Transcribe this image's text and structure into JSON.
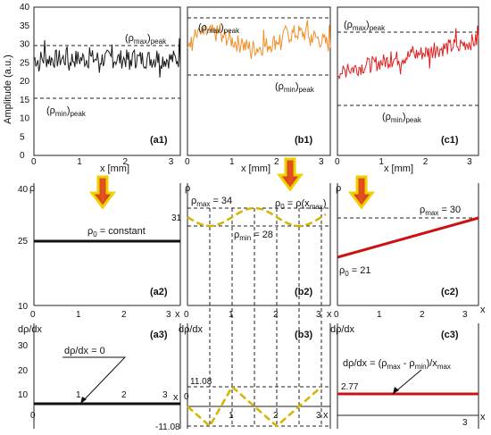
{
  "top_ylabel": "Amplitude (a.u.)",
  "top_xlabel": "x [mm]",
  "top_y_ticks": [
    "0",
    "5",
    "10",
    "15",
    "20",
    "25",
    "30",
    "35",
    "40"
  ],
  "top_x_ticks": [
    "0",
    "1",
    "2",
    "3"
  ],
  "panels_top": [
    {
      "id": "a1",
      "label": "(a1)",
      "color": "#1a1a1a",
      "max_label": "(ρmax)peak",
      "min_label": "(ρmin)peak",
      "max": 32,
      "min": 21,
      "trend": "constant"
    },
    {
      "id": "b1",
      "label": "(b1)",
      "color": "#f0902c",
      "max_label": "(ρmax)peak",
      "min_label": "(ρmin)peak",
      "max": 38,
      "min": 26,
      "trend": "sinusoidal"
    },
    {
      "id": "c1",
      "label": "(c1)",
      "color": "#e02020",
      "max_label": "(ρmax)peak",
      "min_label": "(ρmin)peak",
      "max": 35,
      "min": 19.5,
      "trend": "linear"
    }
  ],
  "mid": {
    "ylabel": "ρ",
    "xlabel": "x",
    "a2": {
      "label": "(a2)",
      "annotation": "ρ0 = constant",
      "y_ticks": [
        "10",
        "25",
        "40"
      ],
      "x_ticks": [
        "0",
        "1",
        "2",
        "3"
      ]
    },
    "b2": {
      "label": "(b2)",
      "max_annotation": "ρmax = 34",
      "func_annotation": "ρ0 = ρ(xmax)",
      "min_annotation": "ρmin = 28",
      "left_value": "31",
      "x_ticks": [
        "0",
        "1",
        "2",
        "3"
      ]
    },
    "c2": {
      "label": "(c2)",
      "max_annotation": "ρmax = 30",
      "start_annotation": "ρ0 = 21",
      "x_ticks": [
        "0",
        "1",
        "2",
        "3"
      ]
    }
  },
  "bottom": {
    "ylabel": "dρ/dx",
    "xlabel": "x",
    "a3": {
      "label": "(a3)",
      "annotation": "dρ/dx = 0",
      "y_ticks": [
        "10",
        "20",
        "30"
      ],
      "x_ticks": [
        "0",
        "1",
        "2",
        "3"
      ]
    },
    "b3": {
      "label": "(b3)",
      "top_value": "11.08",
      "bottom_value": "-11.08",
      "x_ticks": [
        "0",
        "1",
        "2",
        "3"
      ]
    },
    "c3": {
      "label": "(c3)",
      "annotation": "dρ/dx = (ρmax - ρmin)/xmax",
      "value": "2.77",
      "x_ticks": [
        "0",
        "1",
        "2",
        "3"
      ]
    }
  },
  "chart_data": [
    {
      "type": "line",
      "title": "",
      "xlabel": "x [mm]",
      "ylabel": "Amplitude (a.u.)",
      "xlim": [
        0,
        3.2
      ],
      "ylim": [
        0,
        40
      ],
      "series": [
        {
          "name": "",
          "values_summary": "noisy signal around 26",
          "max": 32,
          "min": 21
        }
      ]
    },
    {
      "type": "line",
      "title": "",
      "xlabel": "x [mm]",
      "ylabel": "",
      "xlim": [
        0,
        3.2
      ],
      "ylim": [
        0,
        40
      ],
      "series": [
        {
          "name": "",
          "values_summary": "noisy sinusoidal signal around 31",
          "max": 38,
          "min": 26
        }
      ]
    },
    {
      "type": "line",
      "title": "",
      "xlabel": "x [mm]",
      "ylabel": "",
      "xlim": [
        0,
        3.2
      ],
      "ylim": [
        0,
        40
      ],
      "series": [
        {
          "name": "",
          "values_summary": "noisy linearly rising signal",
          "max": 35,
          "min": 19.5
        }
      ]
    },
    {
      "type": "line",
      "id": "a2",
      "x": [
        0,
        3.2
      ],
      "y": [
        25,
        25
      ]
    },
    {
      "type": "line",
      "id": "b2",
      "x": [
        0,
        0.5,
        1,
        1.5,
        2,
        2.5,
        3
      ],
      "y": [
        31,
        28,
        31,
        34,
        31,
        28,
        31
      ]
    },
    {
      "type": "line",
      "id": "c2",
      "x": [
        0,
        3.25
      ],
      "y": [
        21,
        30
      ]
    },
    {
      "type": "line",
      "id": "a3",
      "x": [
        0,
        3.2
      ],
      "y": [
        0,
        0
      ]
    },
    {
      "type": "line",
      "id": "b3",
      "x": [
        0,
        0.5,
        1,
        1.5,
        2,
        2.5,
        3
      ],
      "y": [
        0,
        -11.08,
        11.08,
        0,
        -11.08,
        0,
        11.08
      ]
    },
    {
      "type": "line",
      "id": "c3",
      "x": [
        0,
        3.2
      ],
      "y": [
        2.77,
        2.77
      ]
    }
  ]
}
